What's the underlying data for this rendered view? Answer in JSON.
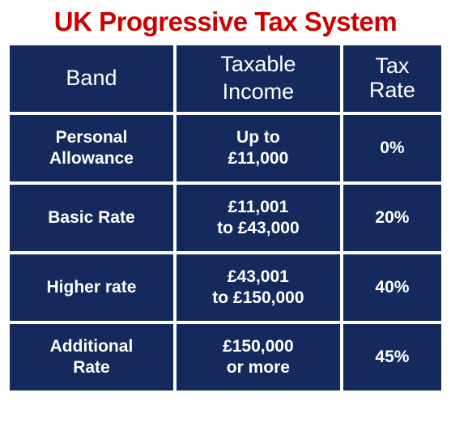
{
  "title": "UK Progressive Tax System",
  "title_color": "#cc0000",
  "title_fontsize": 33,
  "cell_background": "#152a5c",
  "cell_text_color": "#ffffff",
  "gap_color": "#ffffff",
  "columns": [
    "Band",
    "Taxable Income",
    "Tax Rate"
  ],
  "column_header_html": [
    "Band",
    "Taxable\nIncome",
    "Tax\nRate"
  ],
  "rows": [
    {
      "band": "Personal Allowance",
      "income": "Up to £11,000",
      "rate": "0%"
    },
    {
      "band": "Basic Rate",
      "income": "£11,001 to £43,000",
      "rate": "20%"
    },
    {
      "band": "Higher rate",
      "income": "£43,001 to £150,000",
      "rate": "40%"
    },
    {
      "band": "Additional Rate",
      "income": "£150,000 or more",
      "rate": "45%"
    }
  ],
  "row_display": [
    {
      "band": "Personal\nAllowance",
      "income": "Up to\n£11,000",
      "rate": "0%"
    },
    {
      "band": "Basic Rate",
      "income": "£11,001\nto £43,000",
      "rate": "20%"
    },
    {
      "band": "Higher rate",
      "income": "£43,001\nto £150,000",
      "rate": "40%"
    },
    {
      "band": "Additional\nRate",
      "income": "£150,000\nor more",
      "rate": "45%"
    }
  ]
}
